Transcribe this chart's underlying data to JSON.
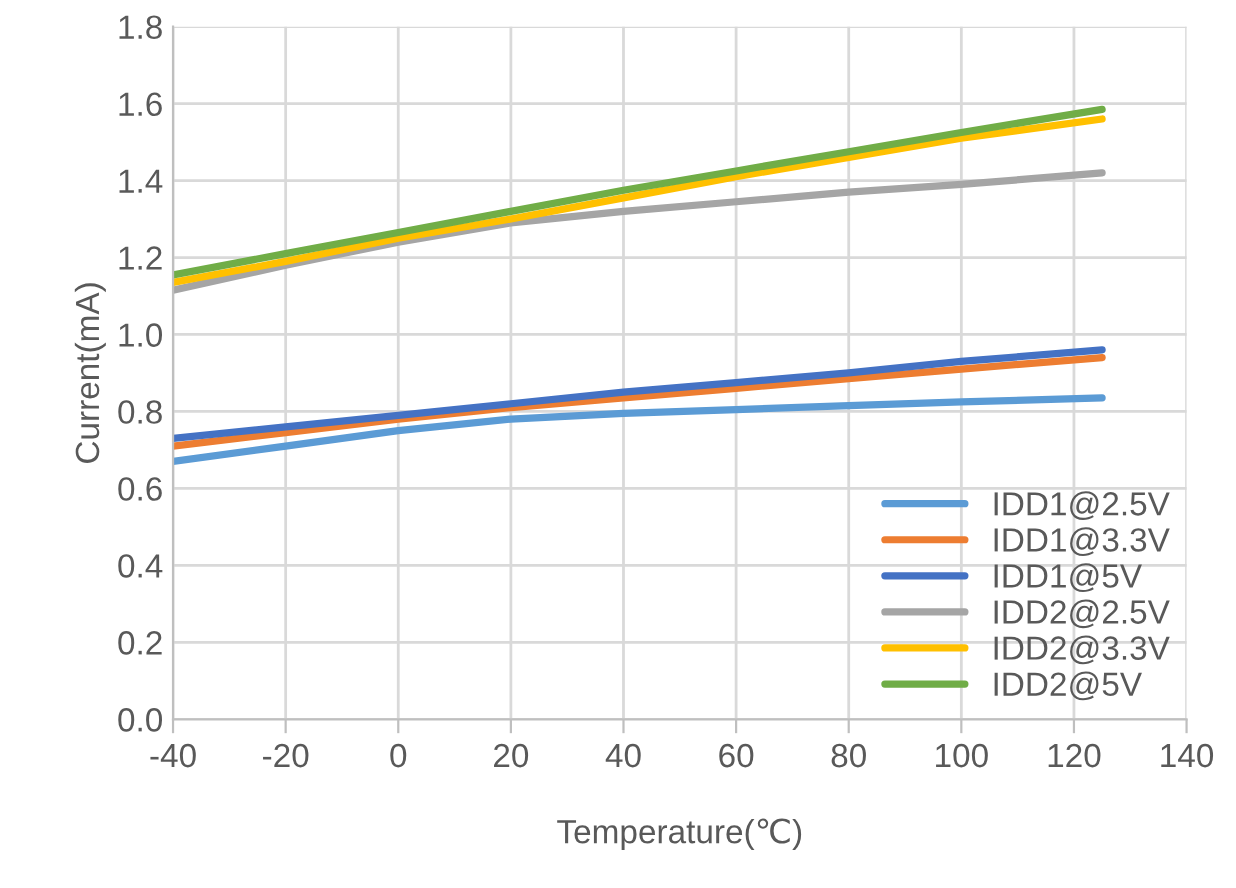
{
  "chart_data": {
    "type": "line",
    "xlabel": "Temperature(℃)",
    "ylabel": "Current(mA)",
    "x": [
      -40,
      -20,
      0,
      20,
      40,
      60,
      80,
      100,
      125
    ],
    "xlim": [
      -40,
      140
    ],
    "xticks": [
      -40,
      -20,
      0,
      20,
      40,
      60,
      80,
      100,
      120,
      140
    ],
    "ylim": [
      0,
      1.8
    ],
    "yticks": [
      {
        "value": 0,
        "label": "0.0"
      },
      {
        "value": 0.2,
        "label": "0.2"
      },
      {
        "value": 0.4,
        "label": "0.4"
      },
      {
        "value": 0.6,
        "label": "0.6"
      },
      {
        "value": 0.8,
        "label": "0.8"
      },
      {
        "value": 1.0,
        "label": "1.0"
      },
      {
        "value": 1.2,
        "label": "1.2"
      },
      {
        "value": 1.4,
        "label": "1.4"
      },
      {
        "value": 1.6,
        "label": "1.6"
      },
      {
        "value": 1.8,
        "label": "1.8"
      }
    ],
    "grid": true,
    "legend": "bottom right",
    "marker": "none",
    "line_style": "solid",
    "series": [
      {
        "name": "IDD1@2.5V",
        "color": "#5b9bd5",
        "values": [
          0.67,
          0.71,
          0.75,
          0.78,
          0.795,
          0.805,
          0.815,
          0.825,
          0.835
        ]
      },
      {
        "name": "IDD1@3.3V",
        "color": "#ed7d31",
        "values": [
          0.71,
          0.745,
          0.78,
          0.81,
          0.835,
          0.86,
          0.885,
          0.91,
          0.94
        ]
      },
      {
        "name": "IDD1@5V",
        "color": "#4472c4",
        "values": [
          0.73,
          0.76,
          0.79,
          0.82,
          0.85,
          0.875,
          0.9,
          0.93,
          0.96
        ]
      },
      {
        "name": "IDD2@2.5V",
        "color": "#a5a5a5",
        "values": [
          1.115,
          1.18,
          1.24,
          1.29,
          1.32,
          1.345,
          1.37,
          1.39,
          1.42
        ]
      },
      {
        "name": "IDD2@3.3V",
        "color": "#ffc000",
        "values": [
          1.135,
          1.19,
          1.25,
          1.3,
          1.355,
          1.41,
          1.46,
          1.51,
          1.56
        ]
      },
      {
        "name": "IDD2@5V",
        "color": "#70ad47",
        "values": [
          1.155,
          1.21,
          1.265,
          1.32,
          1.375,
          1.425,
          1.475,
          1.525,
          1.585
        ]
      }
    ]
  }
}
